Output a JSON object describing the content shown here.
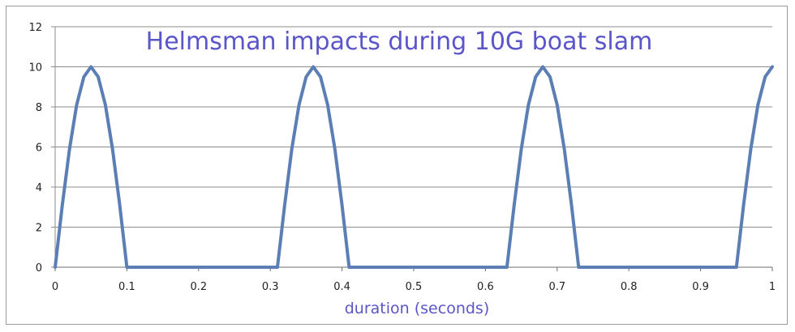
{
  "chart_data": {
    "type": "line",
    "title": "Helmsman impacts during 10G boat slam",
    "xlabel": "duration (seconds)",
    "ylabel": "",
    "xlim": [
      0,
      1
    ],
    "ylim": [
      0,
      12
    ],
    "x_ticks": [
      "0",
      "0.1",
      "0.2",
      "0.3",
      "0.4",
      "0.5",
      "0.6",
      "0.7",
      "0.8",
      "0.9",
      "1"
    ],
    "y_ticks": [
      "0",
      "2",
      "4",
      "6",
      "8",
      "10",
      "12"
    ],
    "grid": "horizontal",
    "legend": "none",
    "series": [
      {
        "color": "#5b7fb5",
        "points": [
          [
            0,
            0
          ],
          [
            0.01,
            3.1
          ],
          [
            0.02,
            5.9
          ],
          [
            0.03,
            8.1
          ],
          [
            0.04,
            9.5
          ],
          [
            0.05,
            10
          ],
          [
            0.06,
            9.5
          ],
          [
            0.07,
            8.1
          ],
          [
            0.08,
            5.9
          ],
          [
            0.09,
            3.1
          ],
          [
            0.1,
            0
          ],
          [
            0.31,
            0
          ],
          [
            0.32,
            3.1
          ],
          [
            0.33,
            5.9
          ],
          [
            0.34,
            8.1
          ],
          [
            0.35,
            9.5
          ],
          [
            0.36,
            10
          ],
          [
            0.37,
            9.5
          ],
          [
            0.38,
            8.1
          ],
          [
            0.39,
            5.9
          ],
          [
            0.4,
            3.1
          ],
          [
            0.41,
            0
          ],
          [
            0.63,
            0
          ],
          [
            0.64,
            3.1
          ],
          [
            0.65,
            5.9
          ],
          [
            0.66,
            8.1
          ],
          [
            0.67,
            9.5
          ],
          [
            0.68,
            10
          ],
          [
            0.69,
            9.5
          ],
          [
            0.7,
            8.1
          ],
          [
            0.71,
            5.9
          ],
          [
            0.72,
            3.1
          ],
          [
            0.73,
            0
          ],
          [
            0.95,
            0
          ],
          [
            0.96,
            3.1
          ],
          [
            0.97,
            5.9
          ],
          [
            0.98,
            8.1
          ],
          [
            0.99,
            9.5
          ],
          [
            1.0,
            10
          ]
        ]
      }
    ]
  },
  "colors": {
    "line": "#5b7fb5",
    "grid": "#8c8c8c",
    "title": "#5a55c8",
    "axis_title": "#5a55c8"
  }
}
